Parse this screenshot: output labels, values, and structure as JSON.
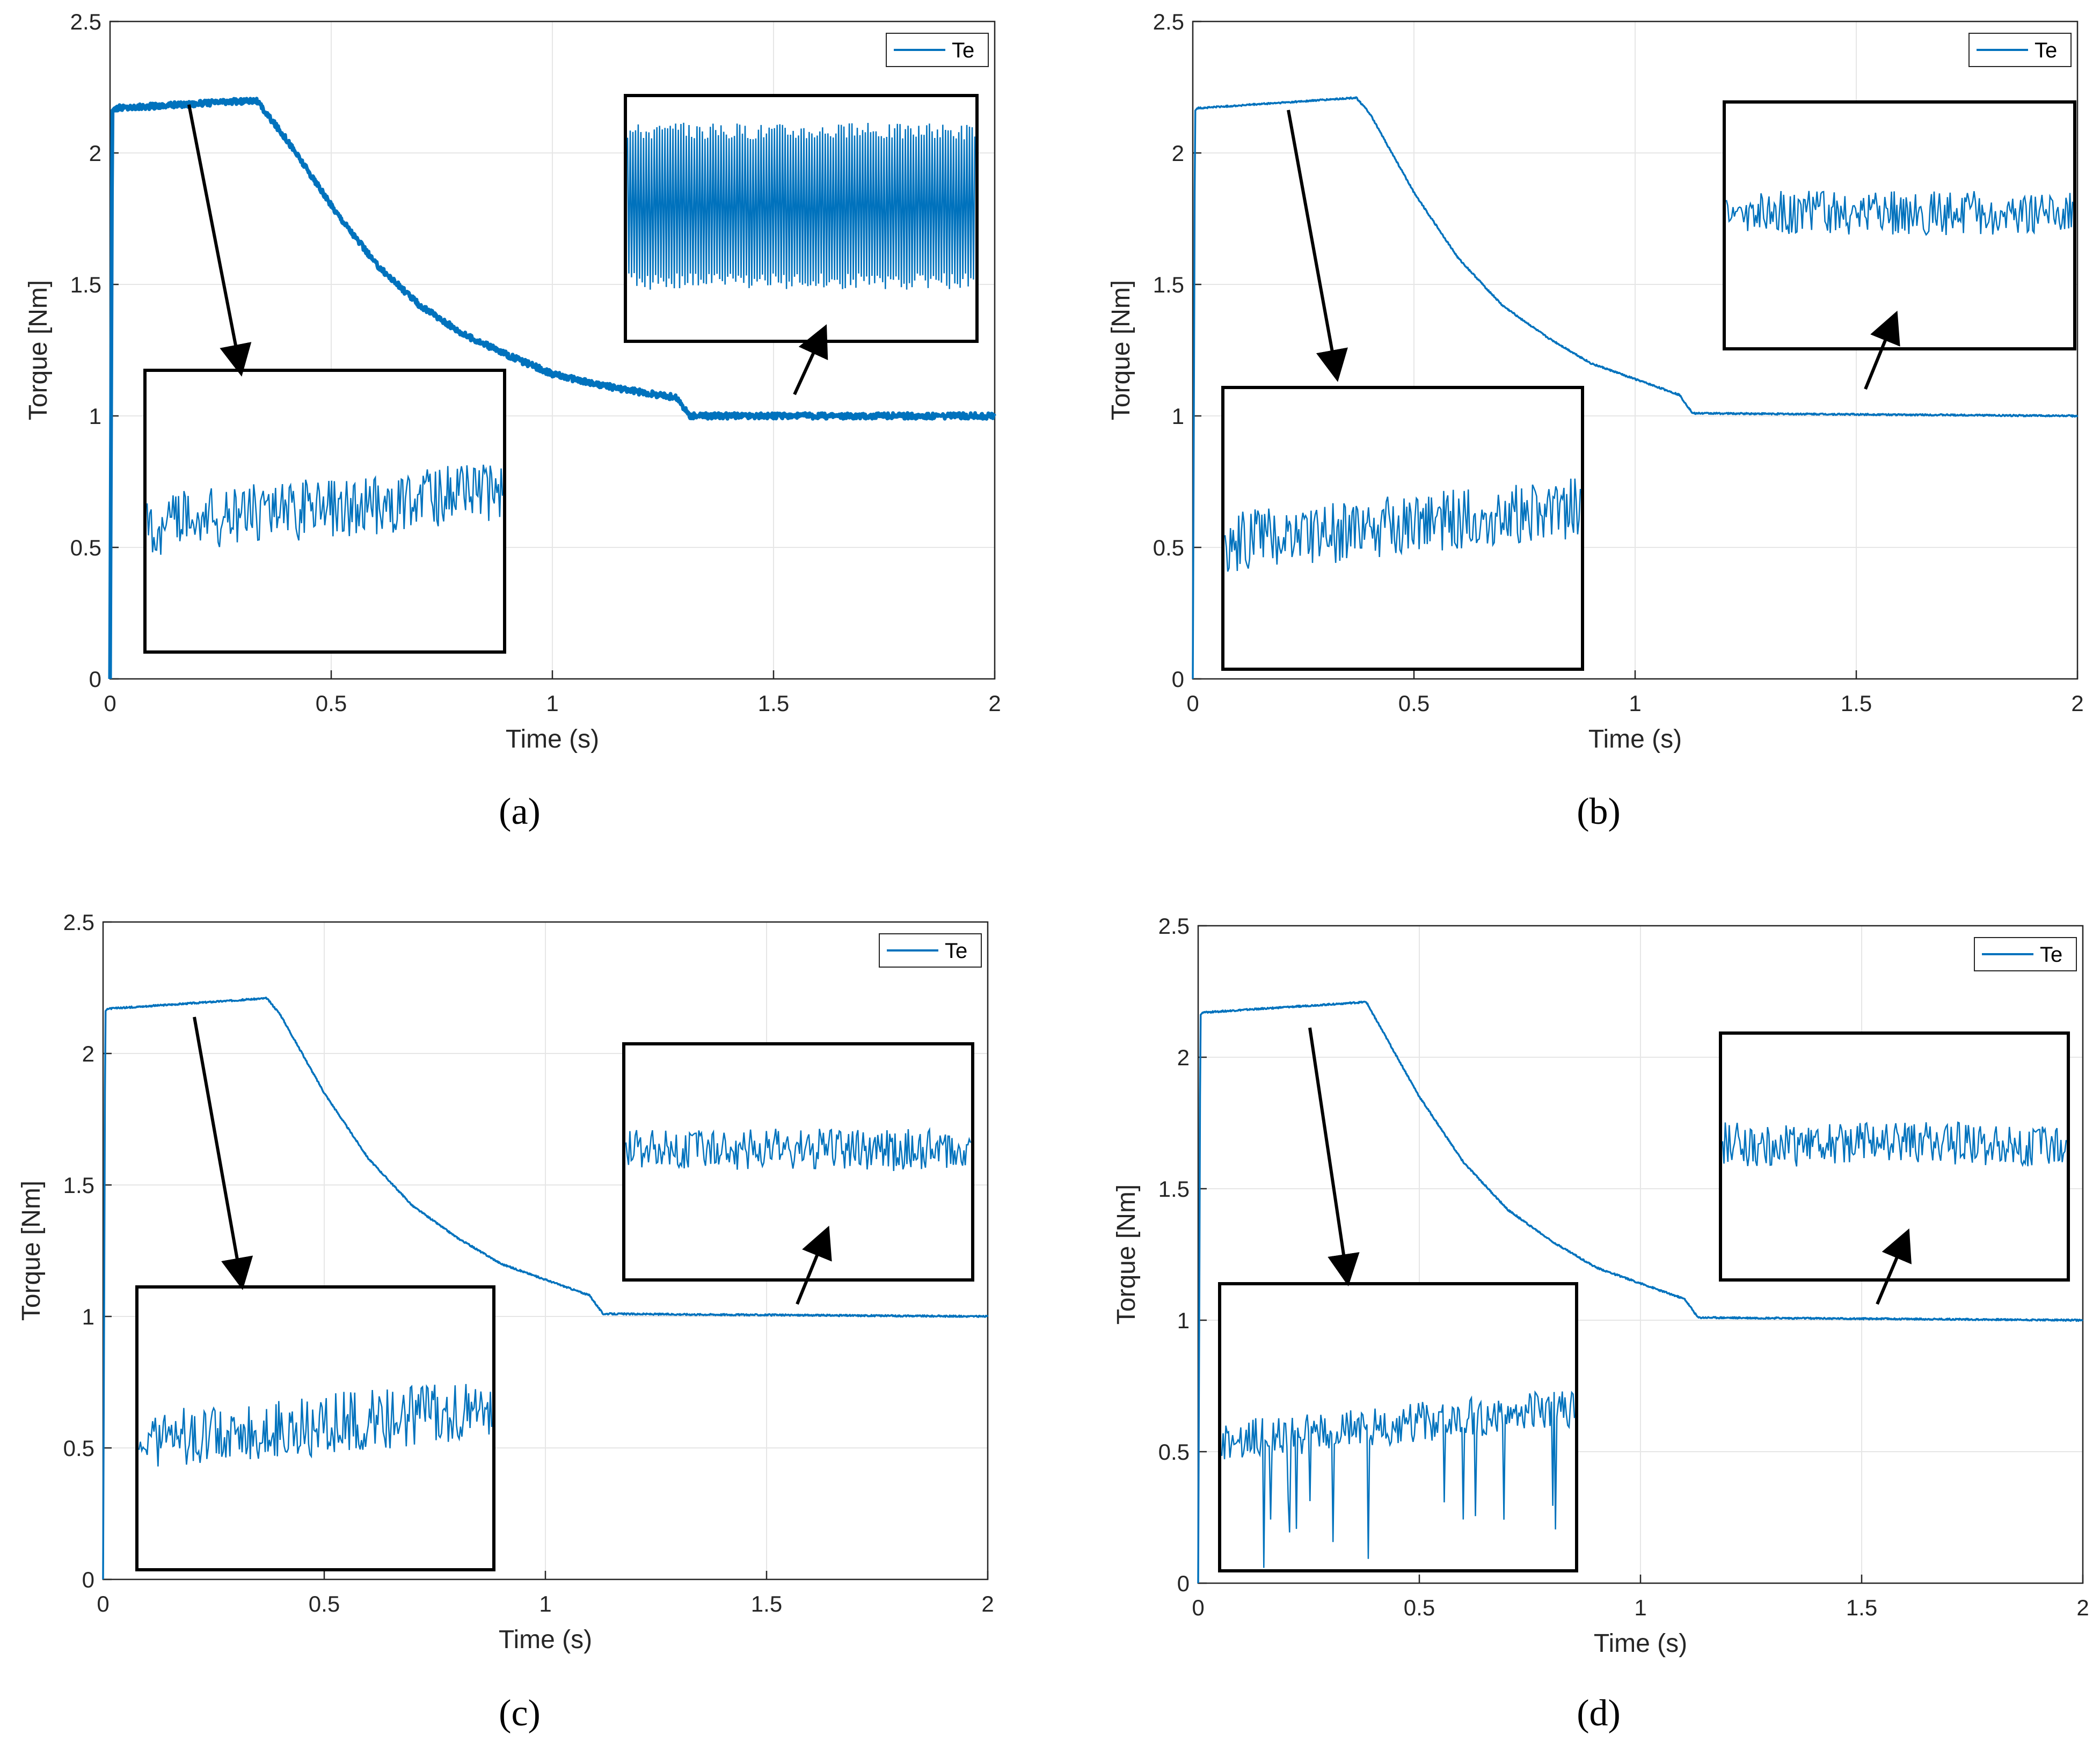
{
  "colors": {
    "line": "#0072BD",
    "grid": "#e6e6e6",
    "axis": "#262626",
    "arrow": "#000000"
  },
  "chart_data": [
    {
      "panel": "(a)",
      "type": "line",
      "xlabel": "Time (s)",
      "ylabel": "Torque [Nm]",
      "xlim": [
        0,
        2
      ],
      "ylim": [
        0,
        2.5
      ],
      "xticks": [
        "0",
        "0.5",
        "1",
        "1.5",
        "2"
      ],
      "yticks": [
        "0",
        "0.5",
        "1",
        "1.5",
        "2",
        "2.5"
      ],
      "legend": "Te",
      "series": [
        {
          "name": "Te",
          "x": [
            0,
            0.005,
            0.01,
            0.33,
            0.4,
            0.5,
            0.6,
            0.7,
            0.8,
            0.9,
            1.0,
            1.1,
            1.2,
            1.28,
            1.31,
            2.0
          ],
          "y": [
            0,
            2.16,
            2.17,
            2.2,
            2.05,
            1.8,
            1.58,
            1.42,
            1.31,
            1.23,
            1.16,
            1.12,
            1.09,
            1.07,
            1.0,
            1.0
          ]
        }
      ],
      "ripple": "high",
      "insets": [
        "start",
        "steady"
      ]
    },
    {
      "panel": "(b)",
      "type": "line",
      "xlabel": "Time (s)",
      "ylabel": "Torque [Nm]",
      "xlim": [
        0,
        2
      ],
      "ylim": [
        0,
        2.5
      ],
      "xticks": [
        "0",
        "0.5",
        "1",
        "1.5",
        "2"
      ],
      "yticks": [
        "0",
        "0.5",
        "1",
        "1.5",
        "2",
        "2.5"
      ],
      "legend": "Te",
      "series": [
        {
          "name": "Te",
          "x": [
            0,
            0.005,
            0.01,
            0.37,
            0.4,
            0.5,
            0.6,
            0.7,
            0.8,
            0.9,
            1.0,
            1.1,
            1.13,
            2.0
          ],
          "y": [
            0,
            2.16,
            2.17,
            2.21,
            2.15,
            1.85,
            1.6,
            1.42,
            1.3,
            1.2,
            1.14,
            1.08,
            1.01,
            1.0
          ]
        }
      ],
      "ripple": "low",
      "insets": [
        "start",
        "steady"
      ]
    },
    {
      "panel": "(c)",
      "type": "line",
      "xlabel": "Time (s)",
      "ylabel": "Torque [Nm]",
      "xlim": [
        0,
        2
      ],
      "ylim": [
        0,
        2.5
      ],
      "xticks": [
        "0",
        "0.5",
        "1",
        "1.5",
        "2"
      ],
      "yticks": [
        "0",
        "0.5",
        "1",
        "1.5",
        "2",
        "2.5"
      ],
      "legend": "Te",
      "series": [
        {
          "name": "Te",
          "x": [
            0,
            0.005,
            0.01,
            0.37,
            0.4,
            0.5,
            0.6,
            0.7,
            0.8,
            0.9,
            1.0,
            1.1,
            1.13,
            2.0
          ],
          "y": [
            0,
            2.16,
            2.17,
            2.21,
            2.15,
            1.85,
            1.6,
            1.42,
            1.3,
            1.2,
            1.14,
            1.08,
            1.01,
            1.0
          ]
        }
      ],
      "ripple": "low",
      "insets": [
        "start",
        "steady"
      ]
    },
    {
      "panel": "(d)",
      "type": "line",
      "xlabel": "Time (s)",
      "ylabel": "Torque [Nm]",
      "xlim": [
        0,
        2
      ],
      "ylim": [
        0,
        2.5
      ],
      "xticks": [
        "0",
        "0.5",
        "1",
        "1.5",
        "2"
      ],
      "yticks": [
        "0",
        "0.5",
        "1",
        "1.5",
        "2",
        "2.5"
      ],
      "legend": "Te",
      "series": [
        {
          "name": "Te",
          "x": [
            0,
            0.005,
            0.01,
            0.38,
            0.4,
            0.5,
            0.6,
            0.7,
            0.8,
            0.9,
            1.0,
            1.1,
            1.13,
            2.0
          ],
          "y": [
            0,
            2.16,
            2.17,
            2.21,
            2.15,
            1.85,
            1.6,
            1.42,
            1.3,
            1.2,
            1.14,
            1.08,
            1.01,
            1.0
          ]
        }
      ],
      "ripple": "low",
      "insets": [
        "start-spiky",
        "steady"
      ]
    }
  ]
}
